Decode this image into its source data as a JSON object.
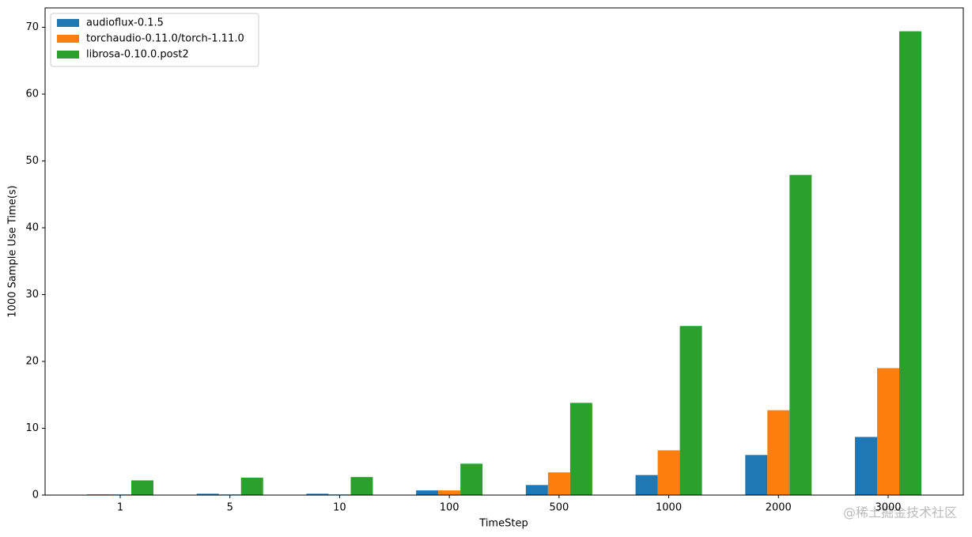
{
  "chart_data": {
    "type": "bar",
    "xlabel": "TimeStep",
    "ylabel": "1000 Sample Use Time(s)",
    "categories": [
      "1",
      "5",
      "10",
      "100",
      "500",
      "1000",
      "2000",
      "3000"
    ],
    "series": [
      {
        "name": "audioflux-0.1.5",
        "color": "#1f77b4",
        "values": [
          0.1,
          0.2,
          0.2,
          0.7,
          1.5,
          3.0,
          6.0,
          8.7
        ]
      },
      {
        "name": "torchaudio-0.11.0/torch-1.11.0",
        "color": "#ff7f0e",
        "values": [
          0.1,
          0.1,
          0.1,
          0.7,
          3.4,
          6.7,
          12.7,
          19.0
        ]
      },
      {
        "name": "librosa-0.10.0.post2",
        "color": "#2ca02c",
        "values": [
          2.2,
          2.6,
          2.7,
          4.7,
          13.8,
          25.3,
          47.9,
          69.4
        ]
      }
    ],
    "ylim": [
      0,
      72.9
    ],
    "yticks": [
      0,
      10,
      20,
      30,
      40,
      50,
      60,
      70
    ],
    "grid": false,
    "legend": "upper-left"
  },
  "watermark": "@稀土掘金技术社区"
}
